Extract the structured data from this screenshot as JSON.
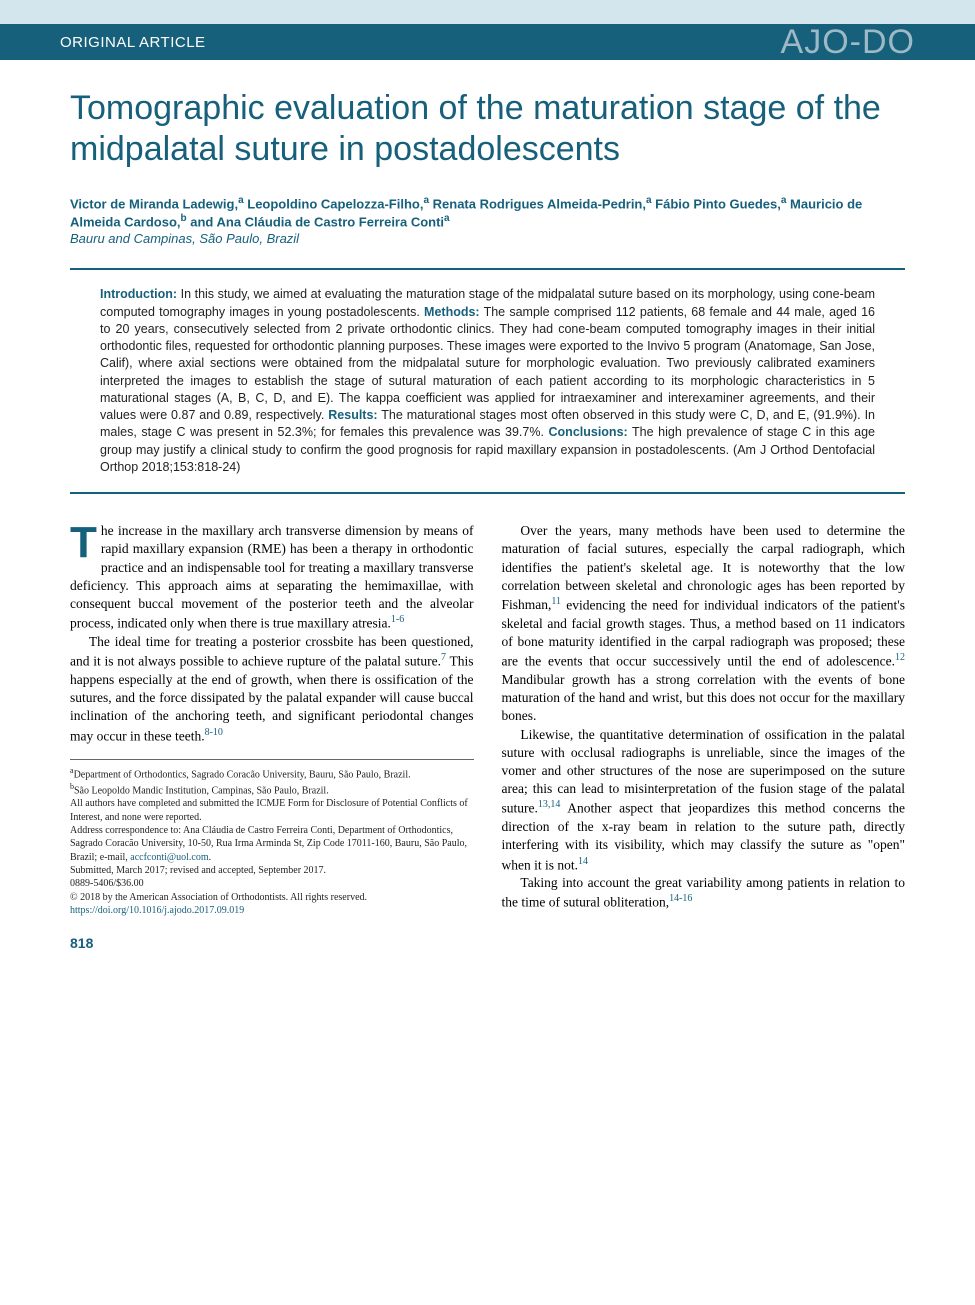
{
  "header": {
    "article_type": "ORIGINAL ARTICLE",
    "journal_logo": "AJO-DO"
  },
  "title": "Tomographic evaluation of the maturation stage of the midpalatal suture in postadolescents",
  "authors_html": "Victor de Miranda Ladewig,<sup>a</sup> Leopoldino Capelozza-Filho,<sup>a</sup> Renata Rodrigues Almeida-Pedrin,<sup>a</sup> Fábio Pinto Guedes,<sup>a</sup> Mauricio de Almeida Cardoso,<sup>b</sup> and Ana Cláudia de Castro Ferreira Conti<sup>a</sup>",
  "affil_line": "Bauru and Campinas, São Paulo, Brazil",
  "abstract": {
    "intro_label": "Introduction:",
    "intro_text": " In this study, we aimed at evaluating the maturation stage of the midpalatal suture based on its morphology, using cone-beam computed tomography images in young postadolescents. ",
    "methods_label": "Methods:",
    "methods_text": " The sample comprised 112 patients, 68 female and 44 male, aged 16 to 20 years, consecutively selected from 2 private orthodontic clinics. They had cone-beam computed tomography images in their initial orthodontic files, requested for orthodontic planning purposes. These images were exported to the Invivo 5 program (Anatomage, San Jose, Calif), where axial sections were obtained from the midpalatal suture for morphologic evaluation. Two previously calibrated examiners interpreted the images to establish the stage of sutural maturation of each patient according to its morphologic characteristics in 5 maturational stages (A, B, C, D, and E). The kappa coefficient was applied for intraexaminer and interexaminer agreements, and their values were 0.87 and 0.89, respectively. ",
    "results_label": "Results:",
    "results_text": " The maturational stages most often observed in this study were C, D, and E, (91.9%). In males, stage C was present in 52.3%; for females this prevalence was 39.7%. ",
    "concl_label": "Conclusions:",
    "concl_text": " The high prevalence of stage C in this age group may justify a clinical study to confirm the good prognosis for rapid maxillary expansion in postadolescents. (Am J Orthod Dentofacial Orthop 2018;153:818-24)"
  },
  "body": {
    "left": {
      "p1_first": "T",
      "p1_rest": "he increase in the maxillary arch transverse dimension by means of rapid maxillary expansion (RME) has been a therapy in orthodontic practice and an indispensable tool for treating a maxillary transverse deficiency. This approach aims at separating the hemimaxillae, with consequent buccal movement of the posterior teeth and the alveolar process, indicated only when there is true maxillary atresia.",
      "p1_ref": "1-6",
      "p2a": "The ideal time for treating a posterior crossbite has been questioned, and it is not always possible to achieve rupture of the palatal suture.",
      "p2_ref1": "7",
      "p2b": " This happens especially at the end of growth, when there is ossification of the sutures, and the force dissipated by the palatal expander will cause buccal inclination of the anchoring teeth, and significant periodontal changes may occur in these teeth.",
      "p2_ref2": "8-10"
    },
    "right": {
      "p1a": "Over the years, many methods have been used to determine the maturation of facial sutures, especially the carpal radiograph, which identifies the patient's skeletal age. It is noteworthy that the low correlation between skeletal and chronologic ages has been reported by Fishman,",
      "p1_ref1": "11",
      "p1b": " evidencing the need for individual indicators of the patient's skeletal and facial growth stages. Thus, a method based on 11 indicators of bone maturity identified in the carpal radiograph was proposed; these are the events that occur successively until the end of adolescence.",
      "p1_ref2": "12",
      "p1c": " Mandibular growth has a strong correlation with the events of bone maturation of the hand and wrist, but this does not occur for the maxillary bones.",
      "p2a": "Likewise, the quantitative determination of ossification in the palatal suture with occlusal radiographs is unreliable, since the images of the vomer and other structures of the nose are superimposed on the suture area; this can lead to misinterpretation of the fusion stage of the palatal suture.",
      "p2_ref1": "13,14",
      "p2b": " Another aspect that jeopardizes this method concerns the direction of the x-ray beam in relation to the suture path, directly interfering with its visibility, which may classify the suture as \"open\" when it is not.",
      "p2_ref2": "14",
      "p3a": "Taking into account the great variability among patients in relation to the time of sutural obliteration,",
      "p3_ref": "14-16"
    }
  },
  "footnotes": {
    "a": "Department of Orthodontics, Sagrado Coracão University, Bauru, São Paulo, Brazil.",
    "b": "São Leopoldo Mandic Institution, Campinas, São Paulo, Brazil.",
    "disclosure": "All authors have completed and submitted the ICMJE Form for Disclosure of Potential Conflicts of Interest, and none were reported.",
    "corr1": "Address correspondence to: Ana Cláudia de Castro Ferreira Conti, Department of Orthodontics, Sagrado Coracão University, 10-50, Rua Irma Arminda St, Zip Code 17011-160, Bauru, São Paulo, Brazil; e-mail, ",
    "corr_email": "accfconti@uol.com",
    "corr2": ".",
    "submitted": "Submitted, March 2017; revised and accepted, September 2017.",
    "issn": "0889-5406/$36.00",
    "copyright": "© 2018 by the American Association of Orthodontists. All rights reserved.",
    "doi": "https://doi.org/10.1016/j.ajodo.2017.09.019"
  },
  "page_number": "818"
}
